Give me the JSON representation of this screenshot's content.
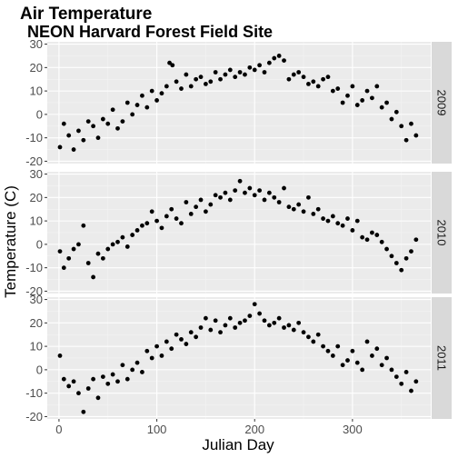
{
  "chart_data": {
    "type": "scatter",
    "title": "Air Temperature",
    "subtitle": "NEON Harvard Forest Field Site",
    "xlabel": "Julian Day",
    "ylabel": "Temperature (C)",
    "xlim": [
      -12,
      380
    ],
    "ylim": [
      -21,
      31
    ],
    "x_ticks": [
      0,
      100,
      200,
      300
    ],
    "y_ticks": [
      -20,
      -10,
      0,
      10,
      20,
      30
    ],
    "grid": true,
    "facet_direction": "rows",
    "colors": {
      "panel_bg": "#ebebeb",
      "grid_major": "#ffffff",
      "strip_bg": "#d9d9d9",
      "points": "#000000"
    },
    "panels": [
      {
        "label": "2009",
        "series": [
          {
            "x": [
              1,
              5,
              10,
              15,
              20,
              25,
              30,
              35,
              40,
              45,
              50,
              55,
              60,
              65,
              70,
              75,
              80,
              85,
              90,
              95,
              100,
              105,
              110,
              113,
              116,
              120,
              125,
              130,
              135,
              140,
              145,
              150,
              155,
              160,
              165,
              170,
              175,
              180,
              185,
              190,
              195,
              200,
              205,
              210,
              215,
              220,
              225,
              230,
              235,
              240,
              245,
              250,
              255,
              260,
              265,
              270,
              275,
              280,
              285,
              290,
              295,
              300,
              305,
              310,
              315,
              320,
              325,
              330,
              335,
              340,
              345,
              350,
              355,
              360,
              365
            ],
            "y": [
              -14,
              -4,
              -9,
              -15,
              -7,
              -11,
              -3,
              -5,
              -10,
              -2,
              -4,
              2,
              -6,
              -3,
              5,
              0,
              4,
              8,
              3,
              10,
              6,
              9,
              12,
              22,
              21,
              14,
              11,
              17,
              12,
              15,
              16,
              13,
              14,
              18,
              15,
              17,
              19,
              16,
              18,
              17,
              20,
              19,
              21,
              18,
              22,
              24,
              25,
              23,
              15,
              17,
              18,
              16,
              13,
              14,
              12,
              15,
              16,
              10,
              11,
              5,
              8,
              12,
              4,
              6,
              10,
              7,
              12,
              3,
              5,
              -2,
              1,
              -5,
              -11,
              -4,
              -9
            ]
          }
        ]
      },
      {
        "label": "2010",
        "series": [
          {
            "x": [
              1,
              5,
              10,
              15,
              20,
              25,
              30,
              35,
              40,
              45,
              50,
              55,
              60,
              65,
              70,
              75,
              80,
              85,
              90,
              95,
              100,
              105,
              110,
              115,
              120,
              125,
              130,
              135,
              140,
              145,
              150,
              155,
              160,
              165,
              170,
              175,
              180,
              185,
              190,
              195,
              200,
              205,
              210,
              215,
              220,
              225,
              230,
              235,
              240,
              245,
              250,
              255,
              260,
              265,
              270,
              275,
              280,
              285,
              290,
              295,
              300,
              305,
              310,
              315,
              320,
              325,
              330,
              335,
              340,
              345,
              350,
              355,
              360,
              365
            ],
            "y": [
              -3,
              -10,
              -6,
              -2,
              0,
              8,
              -8,
              -14,
              -4,
              -6,
              -2,
              0,
              1,
              3,
              -1,
              4,
              6,
              8,
              9,
              14,
              10,
              7,
              12,
              15,
              11,
              9,
              18,
              13,
              16,
              19,
              14,
              17,
              21,
              20,
              22,
              19,
              23,
              27,
              22,
              24,
              21,
              23,
              19,
              22,
              20,
              18,
              24,
              16,
              15,
              17,
              14,
              20,
              13,
              15,
              11,
              10,
              12,
              9,
              8,
              11,
              6,
              10,
              3,
              2,
              5,
              4,
              1,
              -2,
              -5,
              -8,
              -11,
              -6,
              -3,
              2
            ]
          }
        ]
      },
      {
        "label": "2011",
        "series": [
          {
            "x": [
              1,
              5,
              10,
              15,
              20,
              25,
              30,
              35,
              40,
              45,
              50,
              55,
              60,
              65,
              70,
              75,
              80,
              85,
              90,
              95,
              100,
              105,
              110,
              115,
              120,
              125,
              130,
              135,
              140,
              145,
              150,
              155,
              160,
              165,
              170,
              175,
              180,
              185,
              190,
              195,
              200,
              205,
              210,
              215,
              220,
              225,
              230,
              235,
              240,
              245,
              250,
              255,
              260,
              265,
              270,
              275,
              280,
              285,
              290,
              295,
              300,
              305,
              310,
              315,
              320,
              325,
              330,
              335,
              340,
              345,
              350,
              355,
              360,
              365
            ],
            "y": [
              6,
              -4,
              -7,
              -5,
              -10,
              -18,
              -8,
              -4,
              -12,
              -3,
              -6,
              -2,
              -5,
              2,
              -4,
              0,
              3,
              -1,
              8,
              5,
              10,
              6,
              12,
              9,
              15,
              13,
              11,
              16,
              14,
              18,
              22,
              17,
              21,
              16,
              19,
              22,
              18,
              20,
              21,
              23,
              28,
              24,
              21,
              19,
              20,
              22,
              18,
              19,
              17,
              20,
              16,
              14,
              12,
              15,
              10,
              8,
              6,
              10,
              2,
              4,
              8,
              3,
              0,
              12,
              6,
              9,
              2,
              5,
              0,
              -3,
              -6,
              -1,
              -9,
              -5
            ]
          }
        ]
      }
    ]
  }
}
